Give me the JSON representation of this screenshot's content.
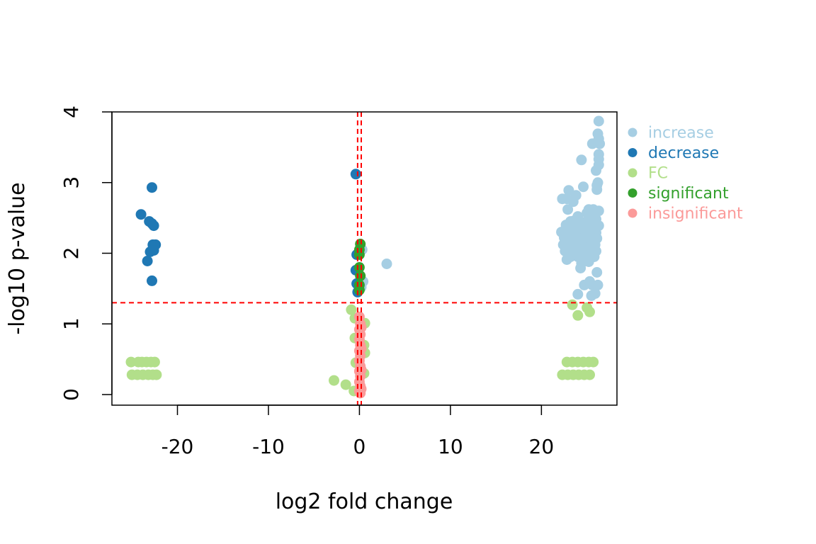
{
  "chart_data": {
    "type": "scatter",
    "title": "",
    "xlabel": "log2 fold change",
    "ylabel": "-log10 p-value",
    "xlim": [
      -27.2,
      28.3
    ],
    "ylim": [
      -0.15,
      4.0
    ],
    "xticks": [
      -20,
      -10,
      0,
      10,
      20
    ],
    "yticks": [
      0,
      1,
      2,
      3,
      4
    ],
    "grid": false,
    "legend_position": "right",
    "thresholds": {
      "vertical": [
        -0.2,
        0.2
      ],
      "horizontal": [
        1.3
      ],
      "color": "#ff0000",
      "style": "dashed"
    },
    "series": [
      {
        "name": "increase",
        "color": "#a6cee3",
        "points": [
          [
            26.3,
            3.87
          ],
          [
            26.2,
            3.69
          ],
          [
            26.3,
            3.62
          ],
          [
            26.4,
            3.55
          ],
          [
            25.6,
            3.55
          ],
          [
            26.3,
            3.4
          ],
          [
            26.3,
            3.33
          ],
          [
            26.3,
            3.25
          ],
          [
            24.4,
            3.32
          ],
          [
            26.0,
            3.17
          ],
          [
            26.2,
            3.0
          ],
          [
            26.1,
            2.96
          ],
          [
            26.1,
            2.9
          ],
          [
            23.0,
            2.89
          ],
          [
            23.8,
            2.82
          ],
          [
            24.6,
            2.94
          ],
          [
            22.3,
            2.77
          ],
          [
            22.8,
            2.77
          ],
          [
            23.5,
            2.73
          ],
          [
            25.2,
            2.62
          ],
          [
            25.7,
            2.62
          ],
          [
            26.3,
            2.6
          ],
          [
            22.9,
            2.62
          ],
          [
            25.0,
            2.57
          ],
          [
            24.0,
            2.52
          ],
          [
            25.4,
            2.5
          ],
          [
            26.0,
            2.48
          ],
          [
            23.2,
            2.45
          ],
          [
            23.6,
            2.46
          ],
          [
            24.2,
            2.45
          ],
          [
            24.8,
            2.44
          ],
          [
            25.6,
            2.45
          ],
          [
            22.7,
            2.4
          ],
          [
            23.1,
            2.4
          ],
          [
            23.5,
            2.38
          ],
          [
            24.0,
            2.4
          ],
          [
            24.5,
            2.38
          ],
          [
            25.0,
            2.4
          ],
          [
            25.5,
            2.39
          ],
          [
            26.3,
            2.39
          ],
          [
            22.2,
            2.3
          ],
          [
            22.6,
            2.32
          ],
          [
            23.0,
            2.3
          ],
          [
            23.4,
            2.31
          ],
          [
            23.8,
            2.29
          ],
          [
            24.3,
            2.3
          ],
          [
            24.7,
            2.32
          ],
          [
            25.1,
            2.31
          ],
          [
            25.6,
            2.3
          ],
          [
            26.0,
            2.29
          ],
          [
            22.5,
            2.22
          ],
          [
            23.0,
            2.22
          ],
          [
            23.5,
            2.2
          ],
          [
            24.0,
            2.22
          ],
          [
            24.5,
            2.21
          ],
          [
            25.0,
            2.2
          ],
          [
            25.5,
            2.22
          ],
          [
            26.1,
            2.21
          ],
          [
            22.4,
            2.12
          ],
          [
            22.9,
            2.12
          ],
          [
            23.4,
            2.1
          ],
          [
            23.9,
            2.12
          ],
          [
            24.4,
            2.1
          ],
          [
            24.9,
            2.12
          ],
          [
            25.4,
            2.1
          ],
          [
            25.9,
            2.12
          ],
          [
            22.6,
            2.03
          ],
          [
            23.1,
            2.02
          ],
          [
            23.6,
            2.04
          ],
          [
            24.1,
            2.02
          ],
          [
            24.6,
            2.03
          ],
          [
            25.1,
            2.02
          ],
          [
            25.6,
            2.04
          ],
          [
            26.0,
            2.03
          ],
          [
            23.2,
            1.95
          ],
          [
            24.0,
            1.95
          ],
          [
            24.9,
            1.93
          ],
          [
            25.8,
            1.95
          ],
          [
            22.8,
            1.91
          ],
          [
            24.4,
            1.86
          ],
          [
            25.2,
            1.88
          ],
          [
            24.3,
            1.79
          ],
          [
            26.1,
            1.73
          ],
          [
            24.7,
            1.55
          ],
          [
            25.3,
            1.6
          ],
          [
            25.6,
            1.55
          ],
          [
            26.2,
            1.55
          ],
          [
            24.0,
            1.42
          ],
          [
            25.9,
            1.43
          ],
          [
            25.5,
            1.4
          ],
          [
            0.3,
            2.05
          ],
          [
            0.4,
            1.6
          ],
          [
            0.2,
            1.52
          ],
          [
            3.0,
            1.85
          ]
        ]
      },
      {
        "name": "decrease",
        "color": "#1f78b4",
        "points": [
          [
            -22.8,
            2.93
          ],
          [
            -24.0,
            2.55
          ],
          [
            -23.1,
            2.45
          ],
          [
            -22.8,
            2.42
          ],
          [
            -22.6,
            2.39
          ],
          [
            -22.7,
            2.12
          ],
          [
            -22.4,
            2.12
          ],
          [
            -23.0,
            2.02
          ],
          [
            -22.6,
            2.04
          ],
          [
            -23.3,
            1.89
          ],
          [
            -22.8,
            1.61
          ],
          [
            -0.4,
            3.12
          ],
          [
            -0.3,
            1.98
          ],
          [
            -0.4,
            1.76
          ],
          [
            -0.2,
            1.77
          ],
          [
            -0.3,
            1.57
          ],
          [
            -0.1,
            1.55
          ],
          [
            -0.2,
            1.45
          ]
        ]
      },
      {
        "name": "FC",
        "color": "#b2df8a",
        "points": [
          [
            -25.1,
            0.46
          ],
          [
            -24.3,
            0.46
          ],
          [
            -23.9,
            0.46
          ],
          [
            -23.4,
            0.46
          ],
          [
            -22.9,
            0.46
          ],
          [
            -22.5,
            0.46
          ],
          [
            -25.0,
            0.28
          ],
          [
            -24.4,
            0.28
          ],
          [
            -23.8,
            0.28
          ],
          [
            -23.2,
            0.28
          ],
          [
            -22.7,
            0.28
          ],
          [
            -22.3,
            0.28
          ],
          [
            22.3,
            0.28
          ],
          [
            22.9,
            0.28
          ],
          [
            23.5,
            0.28
          ],
          [
            24.1,
            0.28
          ],
          [
            24.7,
            0.28
          ],
          [
            25.3,
            0.28
          ],
          [
            22.8,
            0.46
          ],
          [
            23.4,
            0.46
          ],
          [
            24.0,
            0.46
          ],
          [
            24.6,
            0.46
          ],
          [
            25.2,
            0.46
          ],
          [
            25.7,
            0.46
          ],
          [
            23.4,
            1.27
          ],
          [
            24.0,
            1.12
          ],
          [
            25.0,
            1.23
          ],
          [
            25.3,
            1.17
          ],
          [
            -2.8,
            0.2
          ],
          [
            -1.5,
            0.14
          ],
          [
            -0.9,
            1.2
          ],
          [
            0.6,
            1.01
          ],
          [
            0.6,
            0.59
          ],
          [
            -0.5,
            1.08
          ],
          [
            -0.5,
            0.8
          ],
          [
            -0.4,
            0.45
          ],
          [
            -0.6,
            0.05
          ],
          [
            0.5,
            0.7
          ],
          [
            0.5,
            0.3
          ]
        ]
      },
      {
        "name": "significant",
        "color": "#33a02c",
        "points": [
          [
            0.1,
            2.13
          ],
          [
            0.0,
            2.05
          ],
          [
            0.0,
            1.98
          ],
          [
            0.0,
            1.8
          ],
          [
            0.1,
            1.68
          ],
          [
            0.0,
            1.55
          ],
          [
            0.0,
            1.48
          ]
        ]
      },
      {
        "name": "insignificant",
        "color": "#fb9a99",
        "points": [
          [
            0.0,
            1.1
          ],
          [
            0.1,
            1.0
          ],
          [
            0.0,
            0.92
          ],
          [
            0.1,
            0.85
          ],
          [
            0.0,
            0.78
          ],
          [
            0.1,
            0.7
          ],
          [
            0.0,
            0.62
          ],
          [
            0.1,
            0.55
          ],
          [
            0.0,
            0.48
          ],
          [
            0.1,
            0.4
          ],
          [
            0.0,
            0.33
          ],
          [
            0.1,
            0.26
          ],
          [
            0.0,
            0.18
          ],
          [
            0.1,
            0.12
          ],
          [
            0.0,
            0.05
          ],
          [
            0.1,
            0.02
          ],
          [
            0.2,
            0.95
          ],
          [
            0.2,
            0.65
          ],
          [
            0.2,
            0.35
          ],
          [
            0.2,
            0.08
          ]
        ]
      }
    ]
  }
}
